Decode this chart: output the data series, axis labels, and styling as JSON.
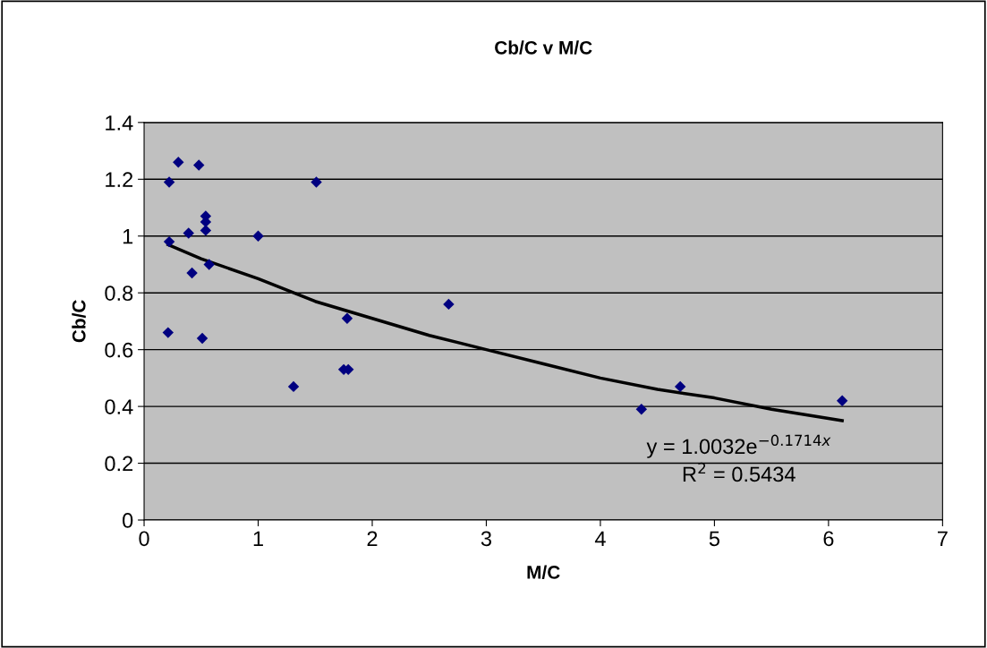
{
  "chart_data": {
    "type": "scatter",
    "title": "Cb/C v M/C",
    "xlabel": "M/C",
    "ylabel": "Cb/C",
    "xlim": [
      0,
      7
    ],
    "xticks": [
      0,
      1,
      2,
      3,
      4,
      5,
      6,
      7
    ],
    "ylim": [
      0,
      1.4
    ],
    "yticks": [
      0,
      0.2,
      0.4,
      0.6,
      0.8,
      1,
      1.2,
      1.4
    ],
    "grid": "y",
    "series": [
      {
        "marker": "diamond",
        "color": "#000080",
        "x": [
          0.22,
          0.3,
          0.48,
          0.22,
          0.39,
          0.54,
          0.54,
          0.54,
          0.42,
          0.57,
          0.21,
          0.51,
          1.0,
          1.51,
          1.31,
          1.75,
          1.79,
          1.78,
          2.67,
          4.36,
          4.7,
          6.12
        ],
        "values": [
          1.19,
          1.26,
          1.25,
          0.98,
          1.01,
          1.07,
          1.05,
          1.02,
          0.87,
          0.9,
          0.66,
          0.64,
          1.0,
          1.19,
          0.47,
          0.53,
          0.53,
          0.71,
          0.76,
          0.39,
          0.47,
          0.42
        ]
      },
      {
        "type": "line",
        "marker": "none",
        "color": "#000000",
        "x": [
          0.21,
          0.5,
          1,
          1.5,
          2,
          2.5,
          3,
          3.5,
          4,
          4.5,
          5,
          5.5,
          6.12
        ],
        "values": [
          0.97,
          0.92,
          0.85,
          0.77,
          0.71,
          0.65,
          0.6,
          0.55,
          0.5,
          0.46,
          0.43,
          0.39,
          0.35
        ]
      }
    ],
    "annotations": [
      "y = 1.0032e$^{−0.1714x}$",
      "R$^{2}$ = 0.5434"
    ]
  }
}
